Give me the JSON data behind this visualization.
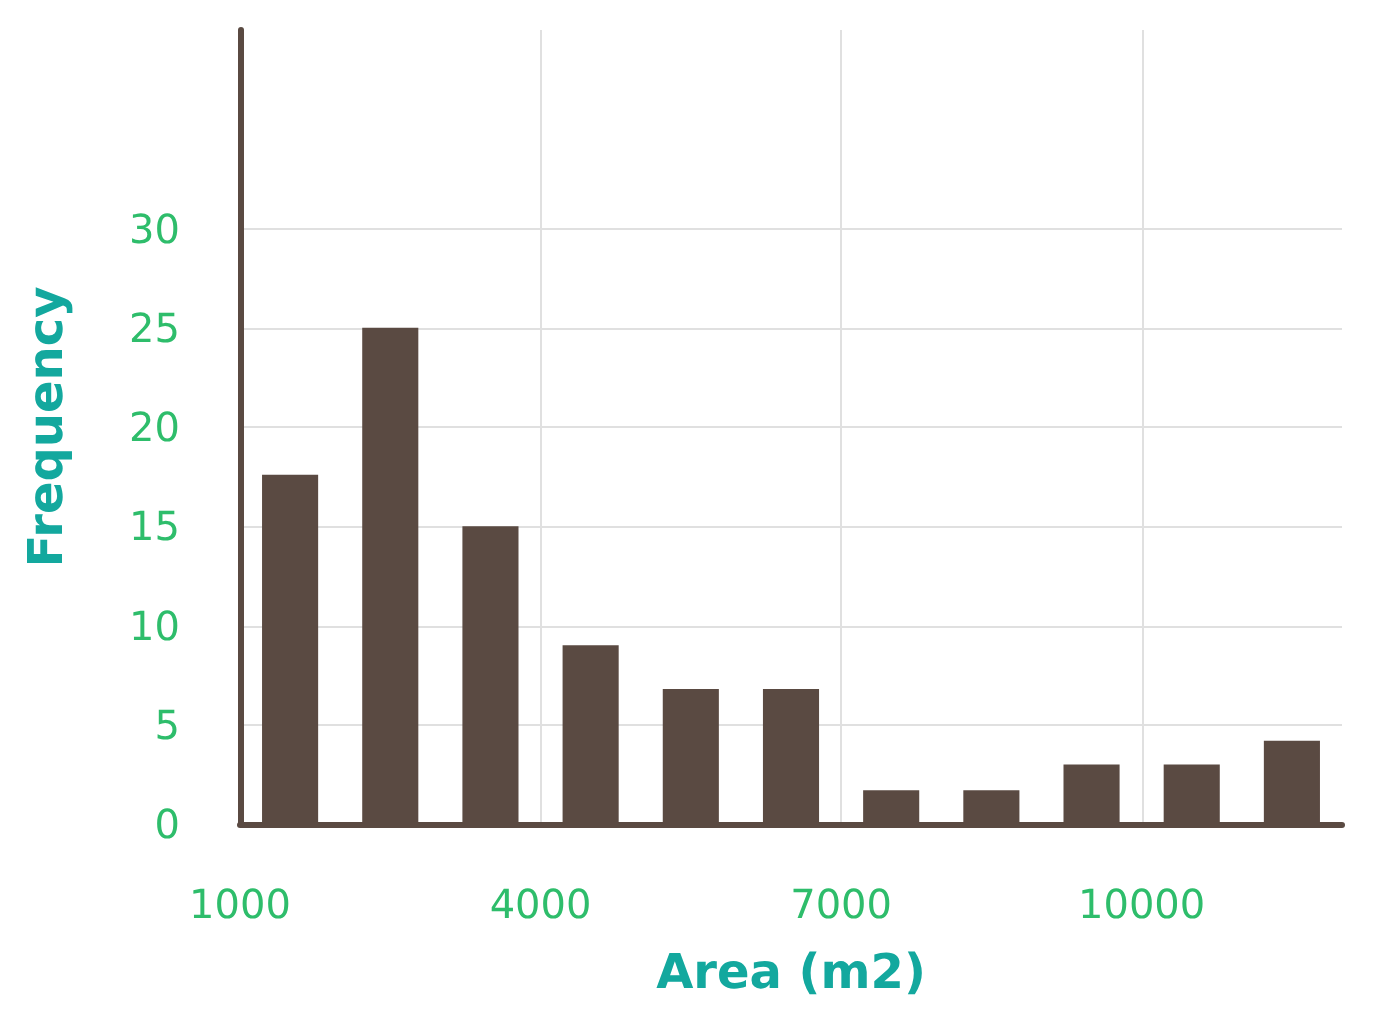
{
  "chart_data": {
    "type": "histogram",
    "xlabel": "Area (m2)",
    "ylabel": "Frequency",
    "bins": [
      1000,
      2000,
      3000,
      4000,
      5000,
      6000,
      7000,
      8000,
      9000,
      10000,
      11000,
      12000
    ],
    "values": [
      17.6,
      25,
      15,
      9,
      6.8,
      6.8,
      1.7,
      1.7,
      3,
      3,
      4.2
    ],
    "color": "#5a4a42",
    "xlim": [
      1000,
      12000
    ],
    "xticks": [
      1000,
      4000,
      7000,
      10000
    ],
    "ylim": [
      0,
      40
    ],
    "yticks": [
      0,
      5,
      10,
      15,
      20,
      25,
      30
    ],
    "grid": true
  }
}
